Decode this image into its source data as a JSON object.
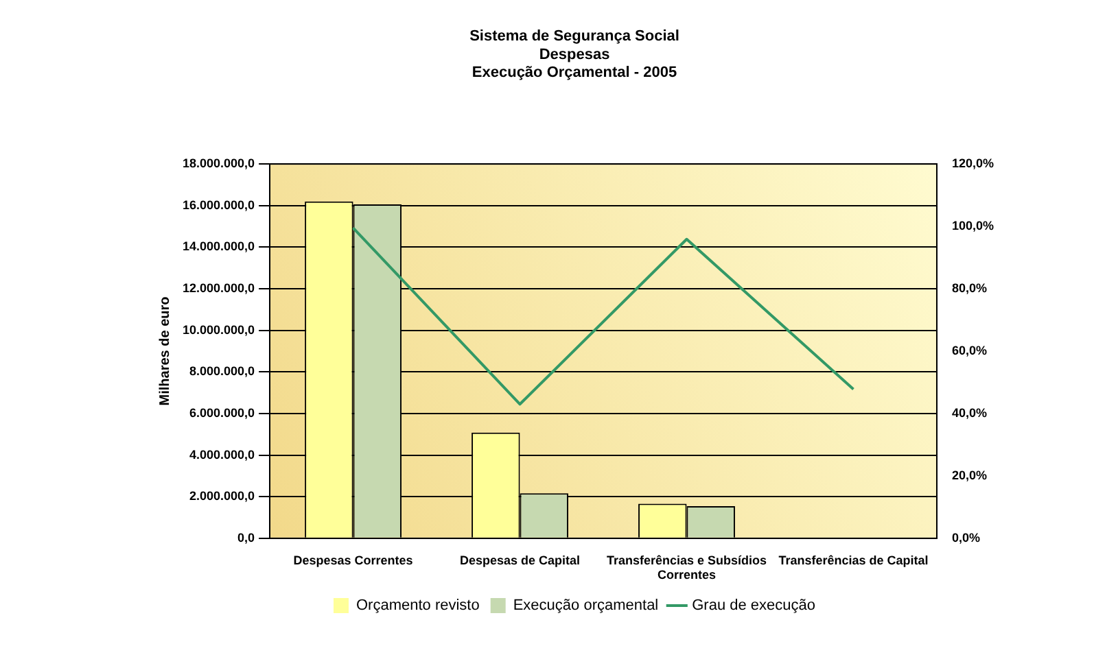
{
  "chart_data": {
    "type": "bar",
    "title": "Sistema de Segurança Social\nDespesas\nExecução Orçamental - 2005",
    "ylabel": "Milhares de euro",
    "categories": [
      "Despesas Correntes",
      "Despesas de Capital",
      "Transferências e Subsídios Correntes",
      "Transferências de Capital"
    ],
    "series": [
      {
        "name": "Orçamento revisto",
        "color": "#ffff99",
        "values": [
          16200000,
          5080000,
          1660000,
          0
        ]
      },
      {
        "name": "Execução orçamental",
        "color": "#c6d9b0",
        "values": [
          16060000,
          2160000,
          1540000,
          0
        ]
      },
      {
        "name": "Grau de execução",
        "type": "line",
        "axis": "y2",
        "color": "#339966",
        "values": [
          99.5,
          43.0,
          95.9,
          47.8
        ]
      }
    ],
    "ylim": [
      0,
      18000000
    ],
    "yticks": [
      {
        "value": 0,
        "label": "0,0"
      },
      {
        "value": 2000000,
        "label": "2.000.000,0"
      },
      {
        "value": 4000000,
        "label": "4.000.000,0"
      },
      {
        "value": 6000000,
        "label": "6.000.000,0"
      },
      {
        "value": 8000000,
        "label": "8.000.000,0"
      },
      {
        "value": 10000000,
        "label": "10.000.000,0"
      },
      {
        "value": 12000000,
        "label": "12.000.000,0"
      },
      {
        "value": 14000000,
        "label": "14.000.000,0"
      },
      {
        "value": 16000000,
        "label": "16.000.000,0"
      },
      {
        "value": 18000000,
        "label": "18.000.000,0"
      }
    ],
    "y2lim": [
      0,
      120
    ],
    "y2ticks": [
      {
        "value": 0,
        "label": "0,0%"
      },
      {
        "value": 20,
        "label": "20,0%"
      },
      {
        "value": 40,
        "label": "40,0%"
      },
      {
        "value": 60,
        "label": "60,0%"
      },
      {
        "value": 80,
        "label": "80,0%"
      },
      {
        "value": 100,
        "label": "100,0%"
      },
      {
        "value": 120,
        "label": "120,0%"
      }
    ],
    "grid": "y",
    "legend": "bottom",
    "marker": "none",
    "line_style": "solid"
  }
}
